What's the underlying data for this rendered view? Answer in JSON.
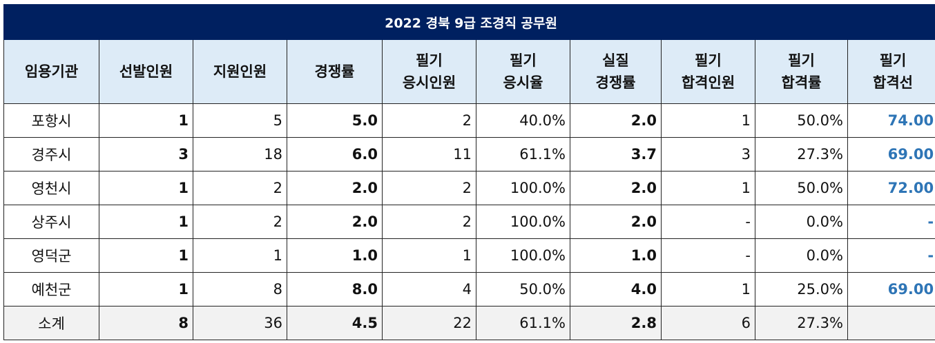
{
  "title": "2022 경북 9급 조경직  공무원",
  "headers": [
    [
      "임용기관"
    ],
    [
      "선발인원"
    ],
    [
      "지원인원"
    ],
    [
      "경쟁률"
    ],
    [
      "필기",
      "응시인원"
    ],
    [
      "필기",
      "응시율"
    ],
    [
      "실질",
      "경쟁률"
    ],
    [
      "필기",
      "합격인원"
    ],
    [
      "필기",
      "합격률"
    ],
    [
      "필기",
      "합격선"
    ]
  ],
  "rows": [
    [
      "포항시",
      "1",
      "5",
      "5.0",
      "2",
      "40.0%",
      "2.0",
      "1",
      "50.0%",
      "74.00"
    ],
    [
      "경주시",
      "3",
      "18",
      "6.0",
      "11",
      "61.1%",
      "3.7",
      "3",
      "27.3%",
      "69.00"
    ],
    [
      "영천시",
      "1",
      "2",
      "2.0",
      "2",
      "100.0%",
      "2.0",
      "1",
      "50.0%",
      "72.00"
    ],
    [
      "상주시",
      "1",
      "2",
      "2.0",
      "2",
      "100.0%",
      "2.0",
      "-",
      "0.0%",
      "-"
    ],
    [
      "영덕군",
      "1",
      "1",
      "1.0",
      "1",
      "100.0%",
      "1.0",
      "-",
      "0.0%",
      "-"
    ],
    [
      "예천군",
      "1",
      "8",
      "8.0",
      "4",
      "50.0%",
      "4.0",
      "1",
      "25.0%",
      "69.00"
    ],
    [
      "소계",
      "8",
      "36",
      "4.5",
      "22",
      "61.1%",
      "2.8",
      "6",
      "27.3%",
      ""
    ]
  ],
  "colors": {
    "title_bg": "#002060",
    "header_bg": "#ddebf7",
    "pass_line_text": "#2e75b6",
    "total_bg": "#f2f2f2"
  }
}
